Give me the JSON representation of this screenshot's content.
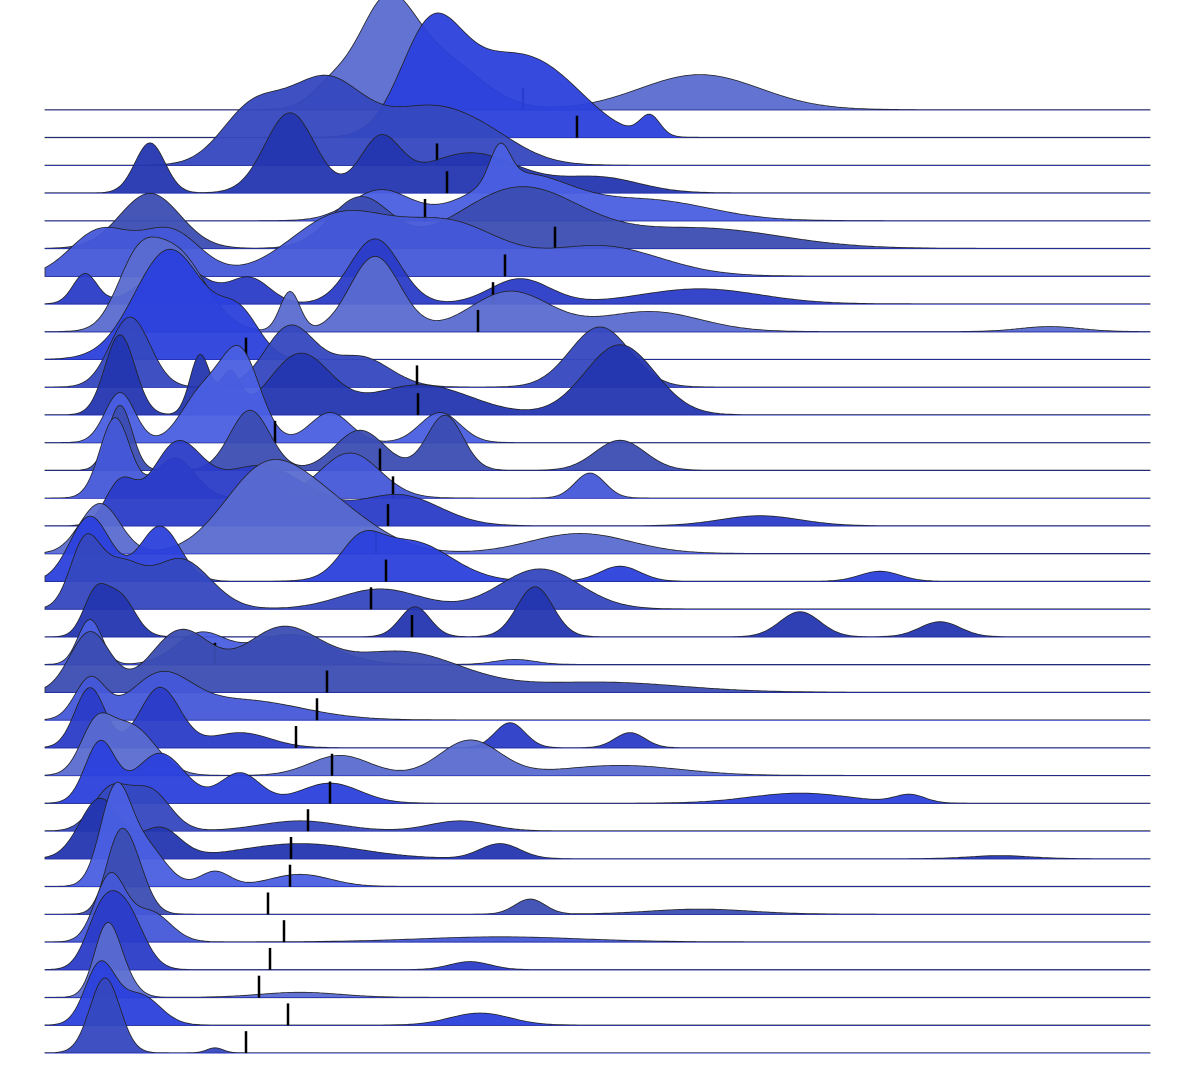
{
  "chart_data": {
    "type": "ridgeline",
    "title": "",
    "xlabel": "",
    "ylabel": "",
    "xlim": [
      0,
      110
    ],
    "grid": false,
    "legend": "none",
    "median_marker_color": "#000000",
    "outline_color": "#222222",
    "palette": [
      "#5a6bd0",
      "#2b40dc",
      "#3548bf",
      "#2336b0",
      "#4a5fe2",
      "#3b4db3",
      "#4558d8",
      "#2a3cc8"
    ],
    "series": [
      {
        "peaks": [
          [
            34,
            9.5,
            2.8
          ],
          [
            39.5,
            5,
            4
          ],
          [
            65.5,
            3.5,
            6
          ],
          [
            28.5,
            2,
            2
          ]
        ],
        "median": 47.8
      },
      {
        "peaks": [
          [
            38.5,
            9.5,
            3
          ],
          [
            45.5,
            7,
            5
          ],
          [
            60.5,
            2,
            1
          ],
          [
            51.5,
            3,
            4
          ]
        ],
        "median": 53.2
      },
      {
        "peaks": [
          [
            28,
            8.5,
            4
          ],
          [
            20.5,
            5,
            3
          ],
          [
            37.5,
            4.5,
            4
          ],
          [
            43.5,
            3,
            4
          ]
        ],
        "median": 39.2
      },
      {
        "peaks": [
          [
            10.5,
            5,
            1.5
          ],
          [
            24.5,
            8,
            2.5
          ],
          [
            33.5,
            5,
            2
          ],
          [
            42.5,
            4,
            5
          ],
          [
            55.5,
            1.5,
            4
          ]
        ],
        "median": 40.2
      },
      {
        "peaks": [
          [
            45.5,
            3.5,
            1
          ],
          [
            33.5,
            3,
            3
          ],
          [
            47.5,
            4.5,
            5
          ],
          [
            60.5,
            2,
            6
          ]
        ],
        "median": 38
      },
      {
        "peaks": [
          [
            10.5,
            5.5,
            3
          ],
          [
            31.5,
            5,
            3
          ],
          [
            47.5,
            6,
            6
          ],
          [
            65.5,
            2,
            8
          ]
        ],
        "median": 51
      },
      {
        "peaks": [
          [
            5.5,
            4.5,
            3
          ],
          [
            12.5,
            4.5,
            3
          ],
          [
            29.5,
            6,
            5
          ],
          [
            40.5,
            5,
            5
          ],
          [
            55.5,
            3,
            6
          ]
        ],
        "median": 46
      },
      {
        "peaks": [
          [
            4,
            3,
            1.2
          ],
          [
            13,
            4,
            3
          ],
          [
            20.5,
            2.5,
            2
          ],
          [
            33,
            6.5,
            2.5
          ],
          [
            47.5,
            2.5,
            3
          ],
          [
            65.5,
            1.5,
            6
          ]
        ],
        "median": 44.8
      },
      {
        "peaks": [
          [
            9,
            5,
            2
          ],
          [
            13,
            8,
            3
          ],
          [
            24.5,
            4,
            1
          ],
          [
            33,
            7.5,
            2.5
          ],
          [
            46.5,
            4,
            4
          ],
          [
            60.5,
            2,
            5
          ],
          [
            100.5,
            0.5,
            3
          ]
        ],
        "median": 43.3
      },
      {
        "peaks": [
          [
            12.5,
            11,
            3.5
          ],
          [
            19.5,
            4,
            2
          ]
        ],
        "median": 20.1
      },
      {
        "peaks": [
          [
            8.5,
            7,
            2
          ],
          [
            24.5,
            6,
            2.5
          ],
          [
            31.5,
            3,
            3
          ],
          [
            55.5,
            6,
            3
          ]
        ],
        "median": 37.2
      },
      {
        "peaks": [
          [
            7.5,
            8,
            1.5
          ],
          [
            15.5,
            6,
            1
          ],
          [
            18.5,
            4,
            1
          ],
          [
            25.5,
            6,
            3
          ],
          [
            37.5,
            3,
            5
          ],
          [
            57.5,
            7,
            3.5
          ]
        ],
        "median": 37.3
      },
      {
        "peaks": [
          [
            7.5,
            5,
            1.5
          ],
          [
            15.5,
            4.5,
            2
          ],
          [
            19.5,
            9,
            2
          ],
          [
            28.5,
            3,
            2
          ],
          [
            39.5,
            3,
            2
          ]
        ],
        "median": 23
      },
      {
        "peaks": [
          [
            7.5,
            6.5,
            1.2
          ],
          [
            20.5,
            6,
            2
          ],
          [
            31.5,
            4,
            2.5
          ],
          [
            40,
            5.5,
            1.8
          ],
          [
            57.5,
            3,
            2.5
          ]
        ],
        "median": 33.5
      },
      {
        "peaks": [
          [
            7,
            8,
            1.5
          ],
          [
            13,
            4,
            2
          ],
          [
            30.5,
            4.5,
            3
          ],
          [
            54.5,
            2.5,
            1.5
          ]
        ],
        "median": 34.8
      },
      {
        "peaks": [
          [
            7.5,
            4,
            1.5
          ],
          [
            13,
            7,
            2.5
          ],
          [
            21.5,
            6,
            5
          ],
          [
            35.5,
            3,
            4
          ],
          [
            71.5,
            1,
            4
          ]
        ],
        "median": 34.3
      },
      {
        "peaks": [
          [
            5.5,
            5,
            2
          ],
          [
            21.5,
            6.5,
            4
          ],
          [
            27.5,
            5,
            5
          ],
          [
            53.5,
            2,
            5
          ]
        ],
        "median": 33.1
      },
      {
        "peaks": [
          [
            4.5,
            6.5,
            2
          ],
          [
            11.5,
            5.5,
            2
          ],
          [
            31.5,
            3,
            2
          ],
          [
            36.5,
            4,
            4
          ],
          [
            57.5,
            1.5,
            2
          ],
          [
            83.5,
            1,
            2
          ]
        ],
        "median": 34.1
      },
      {
        "peaks": [
          [
            4,
            6.5,
            1.5
          ],
          [
            7.5,
            4,
            2
          ],
          [
            13.5,
            5,
            3
          ],
          [
            33.5,
            2,
            4
          ],
          [
            49.5,
            4,
            4
          ]
        ],
        "median": 32.6
      },
      {
        "peaks": [
          [
            5,
            4,
            1.2
          ],
          [
            7.5,
            4,
            1.5
          ],
          [
            37,
            3,
            1.5
          ],
          [
            49,
            5,
            1.8
          ],
          [
            75.5,
            2.5,
            2
          ],
          [
            89.5,
            1.5,
            2
          ]
        ],
        "median": 36.7
      },
      {
        "peaks": [
          [
            4.5,
            4.5,
            1.2
          ],
          [
            15.5,
            3,
            2.5
          ],
          [
            24.5,
            3,
            4
          ],
          [
            47,
            0.5,
            2
          ]
        ],
        "median": 17
      },
      {
        "peaks": [
          [
            4.5,
            6,
            2
          ],
          [
            13.5,
            6,
            3
          ],
          [
            23.5,
            6,
            4
          ],
          [
            35.5,
            4,
            6
          ],
          [
            55.5,
            1,
            8
          ]
        ],
        "median": 28.2
      },
      {
        "peaks": [
          [
            4.5,
            4,
            1.5
          ],
          [
            11.5,
            4,
            3
          ],
          [
            19.5,
            2,
            6
          ]
        ],
        "median": 27.2
      },
      {
        "peaks": [
          [
            4.5,
            6,
            1.5
          ],
          [
            11.5,
            6,
            2
          ],
          [
            19.5,
            1.5,
            3
          ],
          [
            46.5,
            2.5,
            1.5
          ],
          [
            58.5,
            1.5,
            1.5
          ]
        ],
        "median": 25.1
      },
      {
        "peaks": [
          [
            5,
            4,
            1.5
          ],
          [
            8.5,
            5,
            2.5
          ],
          [
            29.5,
            2,
            3
          ],
          [
            42.5,
            3.5,
            3
          ],
          [
            57.5,
            1,
            6
          ]
        ],
        "median": 28.7
      },
      {
        "peaks": [
          [
            5.5,
            6,
            1.5
          ],
          [
            11.5,
            5,
            2.5
          ],
          [
            19.5,
            3,
            2
          ],
          [
            28.5,
            2,
            3
          ],
          [
            75.5,
            1,
            5
          ],
          [
            86.5,
            0.8,
            1.5
          ]
        ],
        "median": 28.5
      },
      {
        "peaks": [
          [
            6.5,
            4,
            1.8
          ],
          [
            10.5,
            4,
            2
          ],
          [
            25.5,
            1,
            4
          ],
          [
            41.5,
            1,
            3
          ]
        ],
        "median": 26.3
      },
      {
        "peaks": [
          [
            5.5,
            6,
            2
          ],
          [
            11.5,
            3,
            2
          ],
          [
            25.5,
            1.5,
            6
          ],
          [
            45.5,
            1.5,
            2
          ],
          [
            95.5,
            0.3,
            3
          ]
        ],
        "median": 24.6
      },
      {
        "peaks": [
          [
            7,
            9,
            1.5
          ],
          [
            10,
            4,
            2
          ],
          [
            17,
            1.5,
            1.5
          ],
          [
            25.5,
            1.2,
            3
          ]
        ],
        "median": 24.5
      },
      {
        "peaks": [
          [
            7,
            4,
            1.2
          ],
          [
            8.5,
            6,
            1.5
          ],
          [
            48.5,
            1.5,
            1.5
          ],
          [
            65.5,
            0.5,
            5
          ]
        ],
        "median": 22.3
      },
      {
        "peaks": [
          [
            6.5,
            6.5,
            1.5
          ],
          [
            10.5,
            3,
            2
          ],
          [
            45.5,
            0.5,
            8
          ]
        ],
        "median": 23.9
      },
      {
        "peaks": [
          [
            5.5,
            4.5,
            1.5
          ],
          [
            8,
            6,
            1.8
          ],
          [
            42.5,
            0.8,
            2
          ]
        ],
        "median": 22.5
      },
      {
        "peaks": [
          [
            6,
            4.5,
            1.2
          ],
          [
            7,
            3.5,
            1.5
          ],
          [
            25.5,
            0.5,
            4
          ]
        ],
        "median": 21.4
      },
      {
        "peaks": [
          [
            5.5,
            6,
            1.5
          ],
          [
            9.5,
            3,
            2
          ],
          [
            43.5,
            1.2,
            3
          ]
        ],
        "median": 24.3
      },
      {
        "peaks": [
          [
            6,
            7.5,
            1.5
          ],
          [
            17,
            0.5,
            0.8
          ]
        ],
        "median": 20.1
      }
    ]
  }
}
